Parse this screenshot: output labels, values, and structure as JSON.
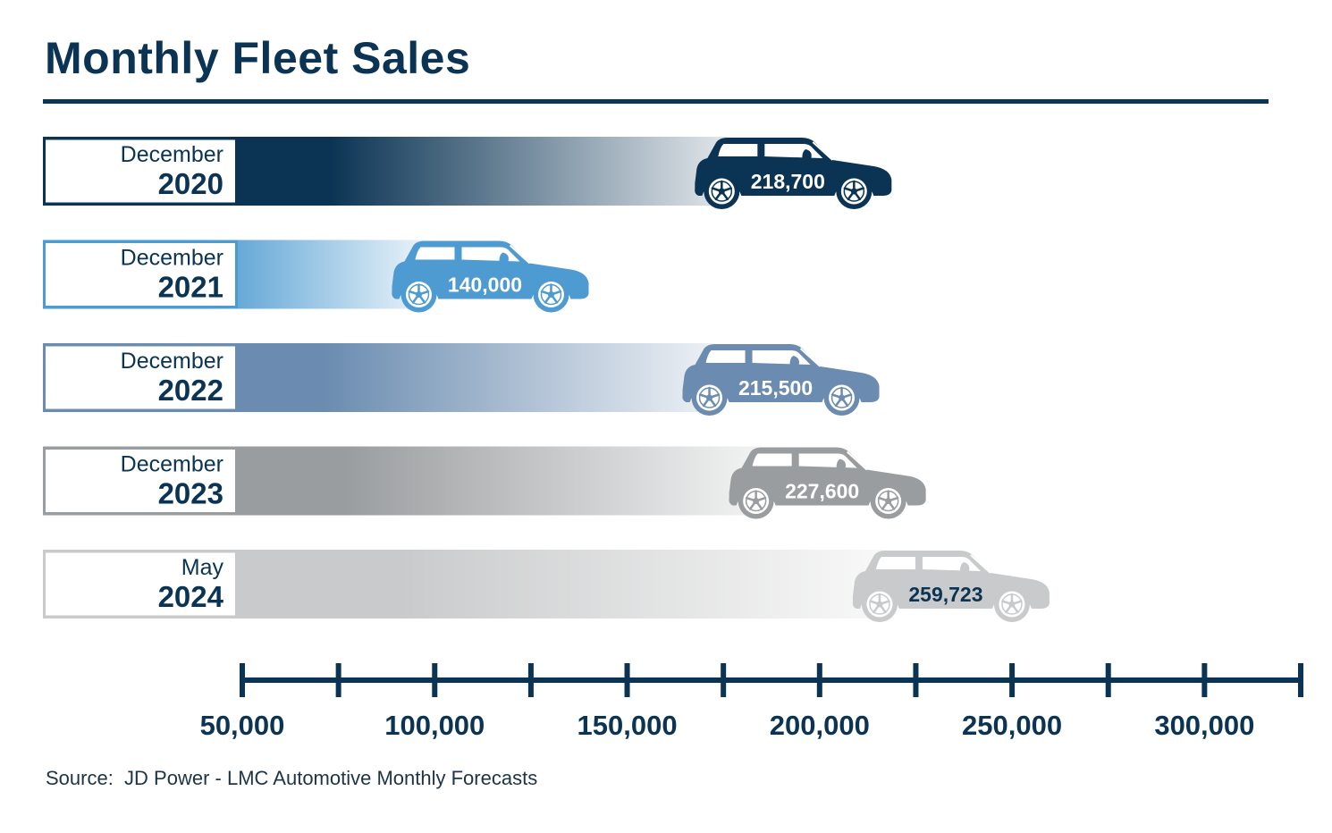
{
  "title": "Monthly Fleet Sales",
  "source": "Source:  JD Power - LMC Automotive Monthly Forecasts",
  "chart_data": {
    "type": "bar",
    "orientation": "horizontal",
    "title": "Monthly Fleet Sales",
    "xlim": [
      50000,
      325000
    ],
    "x_ticks": [
      50000,
      75000,
      100000,
      125000,
      150000,
      175000,
      200000,
      225000,
      250000,
      275000,
      300000,
      325000
    ],
    "x_tick_labels": [
      {
        "value": 50000,
        "label": "50,000"
      },
      {
        "value": 100000,
        "label": "100,000"
      },
      {
        "value": 150000,
        "label": "150,000"
      },
      {
        "value": 200000,
        "label": "200,000"
      },
      {
        "value": 250000,
        "label": "250,000"
      },
      {
        "value": 300000,
        "label": "300,000"
      }
    ],
    "bars": [
      {
        "month": "December",
        "year": "2020",
        "value": 218700,
        "label": "218,700",
        "color": "#0b3454",
        "label_color": "#ffffff"
      },
      {
        "month": "December",
        "year": "2021",
        "value": 140000,
        "label": "140,000",
        "color": "#4e9bd1",
        "label_color": "#ffffff"
      },
      {
        "month": "December",
        "year": "2022",
        "value": 215500,
        "label": "215,500",
        "color": "#6b8cb0",
        "label_color": "#ffffff"
      },
      {
        "month": "December",
        "year": "2023",
        "value": 227600,
        "label": "227,600",
        "color": "#9a9d9f",
        "label_color": "#ffffff"
      },
      {
        "month": "May",
        "year": "2024",
        "value": 259723,
        "label": "259,723",
        "color": "#c9cacb",
        "label_color": "#0b3454"
      }
    ],
    "axis_color": "#0b3454"
  }
}
